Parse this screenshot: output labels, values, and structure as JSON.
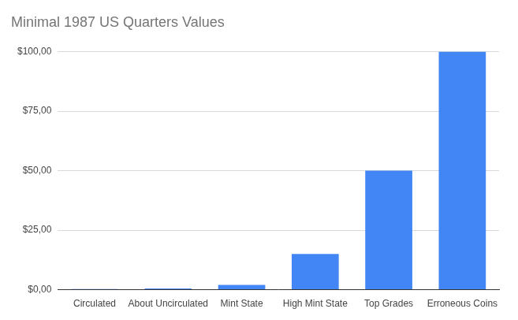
{
  "chart_data": {
    "type": "bar",
    "title": "Minimal 1987 US Quarters Values",
    "categories": [
      "Circulated",
      "About Uncirculated",
      "Mint State",
      "High Mint State",
      "Top Grades",
      "Erroneous Coins"
    ],
    "values": [
      0.25,
      0.5,
      2,
      15,
      50,
      100
    ],
    "color": "#4285f4",
    "ylim": [
      0,
      100
    ],
    "yticks": [
      {
        "value": 0,
        "label": "$0,00"
      },
      {
        "value": 25,
        "label": "$25,00"
      },
      {
        "value": 50,
        "label": "$50,00"
      },
      {
        "value": 75,
        "label": "$75,00"
      },
      {
        "value": 100,
        "label": "$100,00"
      }
    ],
    "grid": true
  }
}
